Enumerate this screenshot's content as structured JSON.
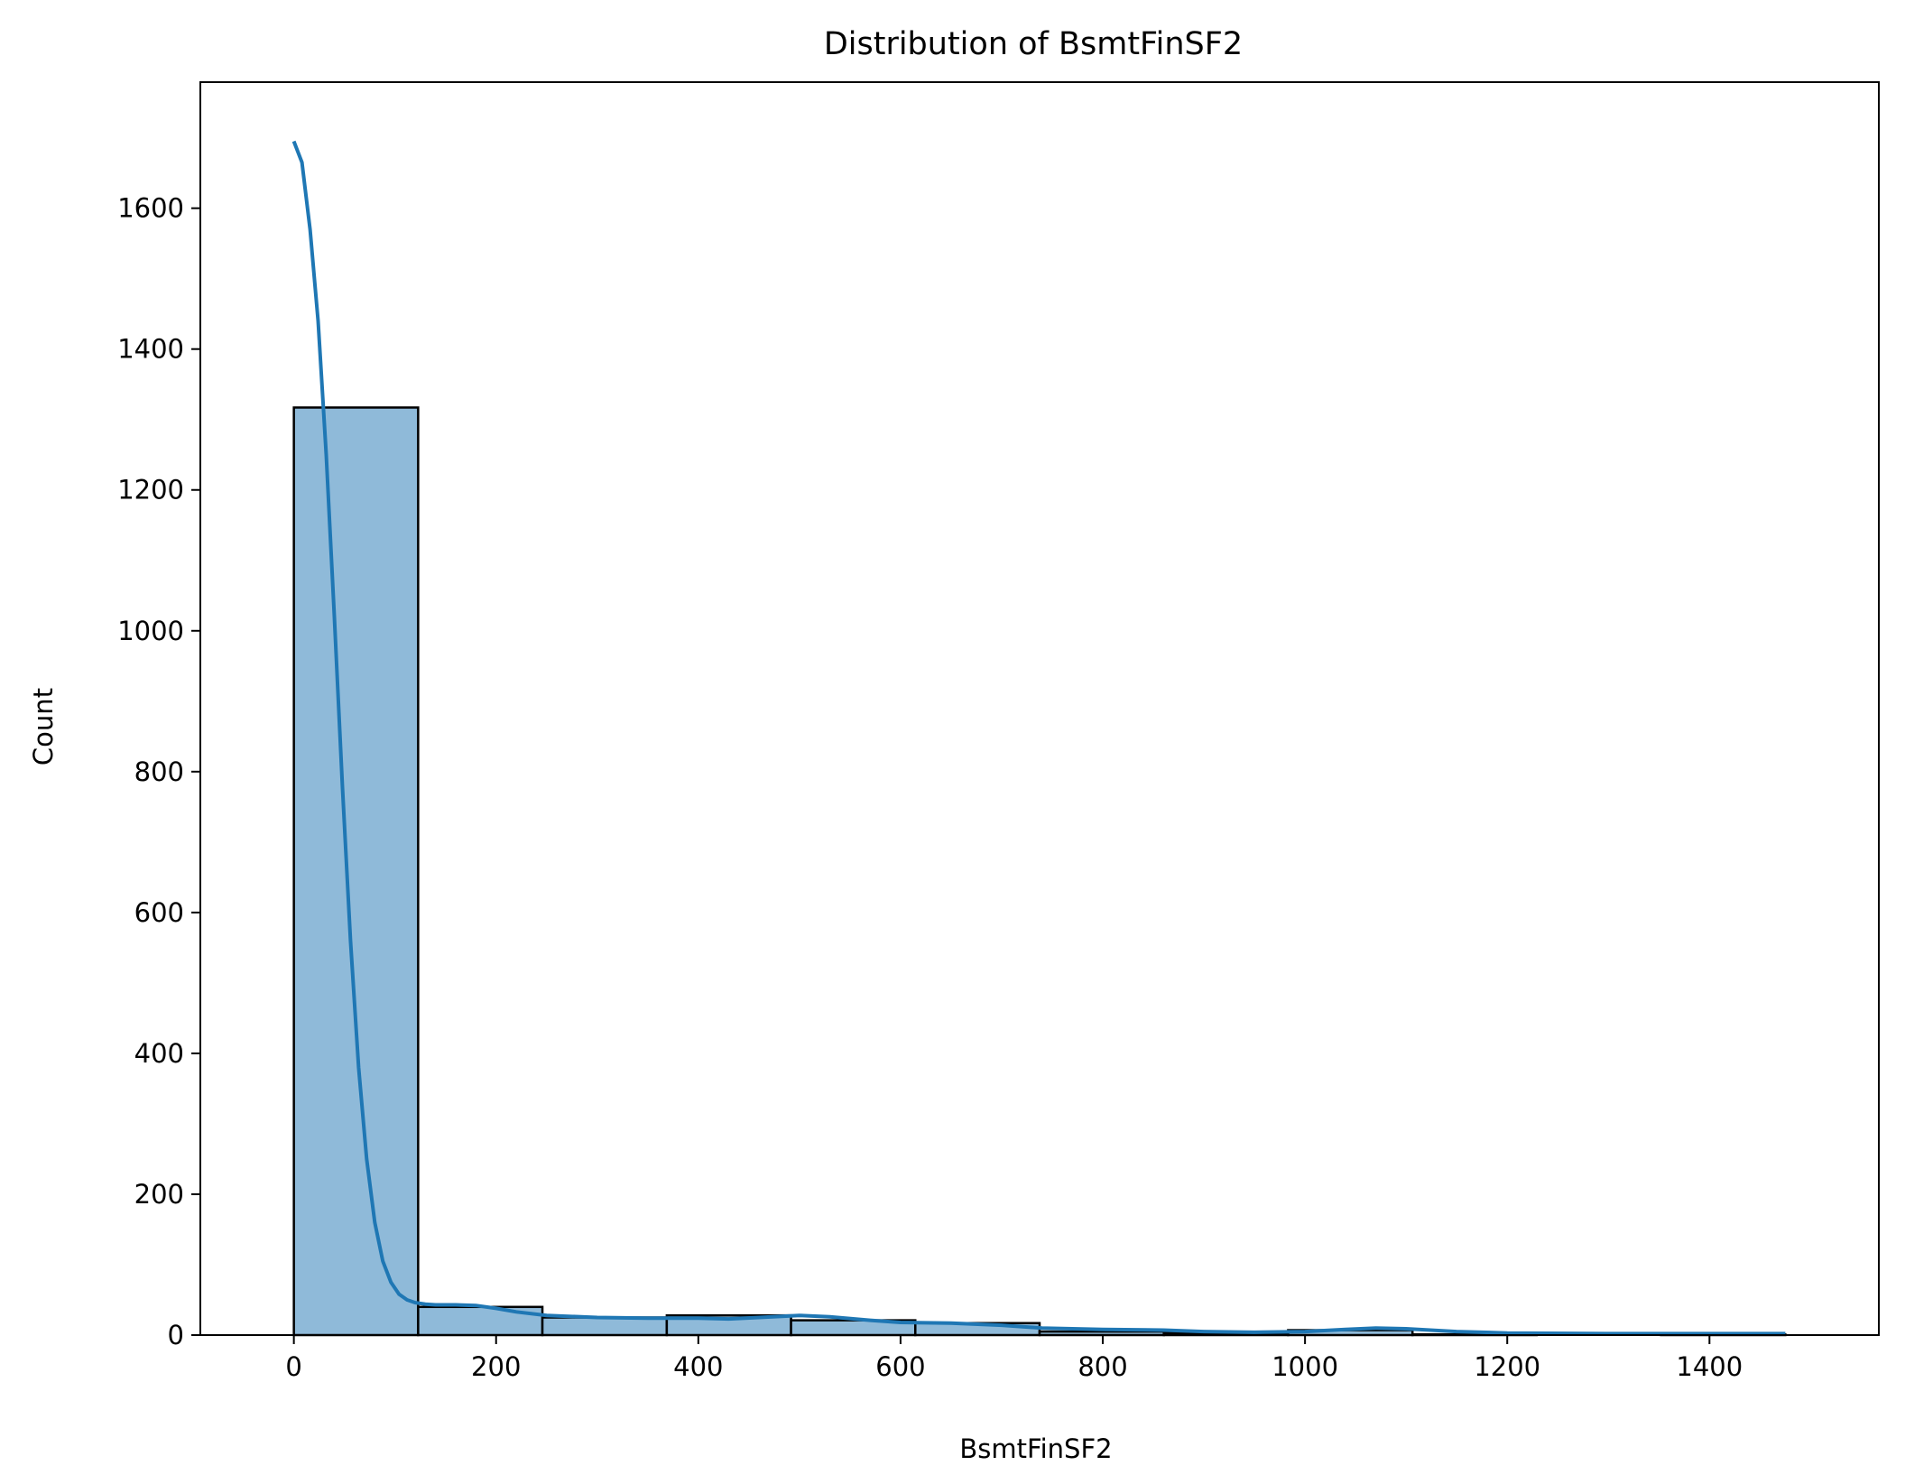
{
  "chart_data": {
    "type": "bar",
    "title": "Distribution of BsmtFinSF2",
    "xlabel": "BsmtFinSF2",
    "ylabel": "Count",
    "xlim": [
      -92.5,
      1567.5
    ],
    "ylim": [
      0,
      1779
    ],
    "xticks": [
      0,
      200,
      400,
      600,
      800,
      1000,
      1200,
      1400
    ],
    "yticks": [
      0,
      200,
      400,
      600,
      800,
      1000,
      1200,
      1400,
      1600
    ],
    "grid": false,
    "bins": [
      {
        "x0": 0.0,
        "x1": 122.9,
        "count": 1317
      },
      {
        "x0": 122.9,
        "x1": 245.8,
        "count": 40
      },
      {
        "x0": 245.8,
        "x1": 368.8,
        "count": 25
      },
      {
        "x0": 368.8,
        "x1": 491.7,
        "count": 28
      },
      {
        "x0": 491.7,
        "x1": 614.6,
        "count": 21
      },
      {
        "x0": 614.6,
        "x1": 737.5,
        "count": 17
      },
      {
        "x0": 737.5,
        "x1": 860.4,
        "count": 5
      },
      {
        "x0": 860.4,
        "x1": 983.3,
        "count": 3
      },
      {
        "x0": 983.3,
        "x1": 1106.3,
        "count": 7
      },
      {
        "x0": 1106.3,
        "x1": 1229.2,
        "count": 1
      },
      {
        "x0": 1229.2,
        "x1": 1352.1,
        "count": 0
      },
      {
        "x0": 1352.1,
        "x1": 1475.0,
        "count": 1
      }
    ],
    "kde": {
      "x": [
        0,
        8,
        16,
        24,
        32,
        40,
        48,
        56,
        64,
        72,
        80,
        88,
        96,
        104,
        112,
        120,
        130,
        140,
        160,
        180,
        200,
        220,
        250,
        300,
        350,
        400,
        430,
        460,
        500,
        530,
        570,
        600,
        650,
        700,
        740,
        800,
        860,
        900,
        950,
        1000,
        1040,
        1070,
        1100,
        1150,
        1200,
        1300,
        1400,
        1475
      ],
      "y": [
        1695,
        1665,
        1570,
        1440,
        1250,
        1020,
        780,
        560,
        380,
        250,
        160,
        105,
        75,
        58,
        50,
        46,
        44,
        43,
        43,
        42,
        38,
        33,
        28,
        25,
        24,
        24,
        23,
        25,
        28,
        26,
        21,
        18,
        17,
        14,
        10,
        8,
        7,
        5,
        4,
        5,
        8,
        10,
        9,
        5,
        3,
        2,
        2,
        2
      ]
    },
    "colors": {
      "bar_fill": "#8fbad9",
      "bar_edge": "#000000",
      "kde_line": "#1f77b4"
    }
  }
}
